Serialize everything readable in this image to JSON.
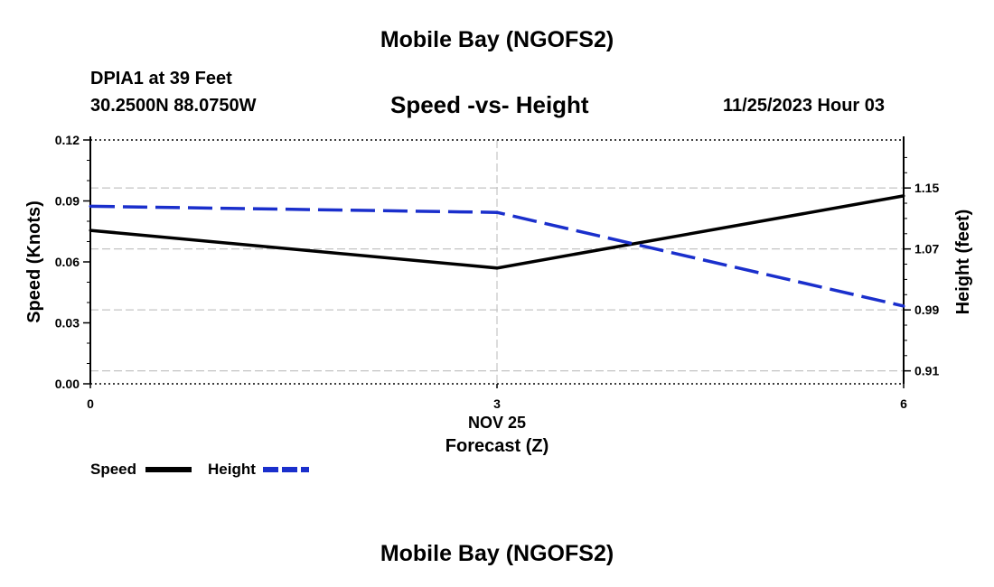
{
  "header": {
    "title": "Mobile Bay (NGOFS2)",
    "station": "DPIA1 at 39 Feet",
    "coordinates": "30.2500N  88.0750W",
    "datetime": "11/25/2023 Hour 03"
  },
  "footer": {
    "title": "Mobile Bay (NGOFS2)"
  },
  "chart_data": {
    "type": "line",
    "title": "Speed -vs- Height",
    "xlabel": "Forecast (Z)",
    "x_date_label": "NOV 25",
    "x": [
      0,
      3,
      6
    ],
    "xlim": [
      0,
      6
    ],
    "x_ticks": [
      "0",
      "3",
      "6"
    ],
    "ylabel_left": "Speed (Knots)",
    "ylim_left": [
      0.0,
      0.12
    ],
    "y_ticks_left": [
      "0.00",
      "0.03",
      "0.06",
      "0.09",
      "0.12"
    ],
    "ylabel_right": "Height (feet)",
    "ylim_right": [
      0.893,
      1.213
    ],
    "y_ticks_right": [
      "0.91",
      "0.99",
      "1.07",
      "1.15"
    ],
    "grid": true,
    "legend_position": "bottom-left",
    "series": [
      {
        "name": "Speed",
        "axis": "left",
        "style": "solid",
        "color": "#000000",
        "values": [
          0.0755,
          0.057,
          0.0925
        ]
      },
      {
        "name": "Height",
        "axis": "right",
        "style": "dashed",
        "color": "#1a2fcc",
        "values": [
          1.126,
          1.118,
          0.995
        ]
      }
    ]
  }
}
